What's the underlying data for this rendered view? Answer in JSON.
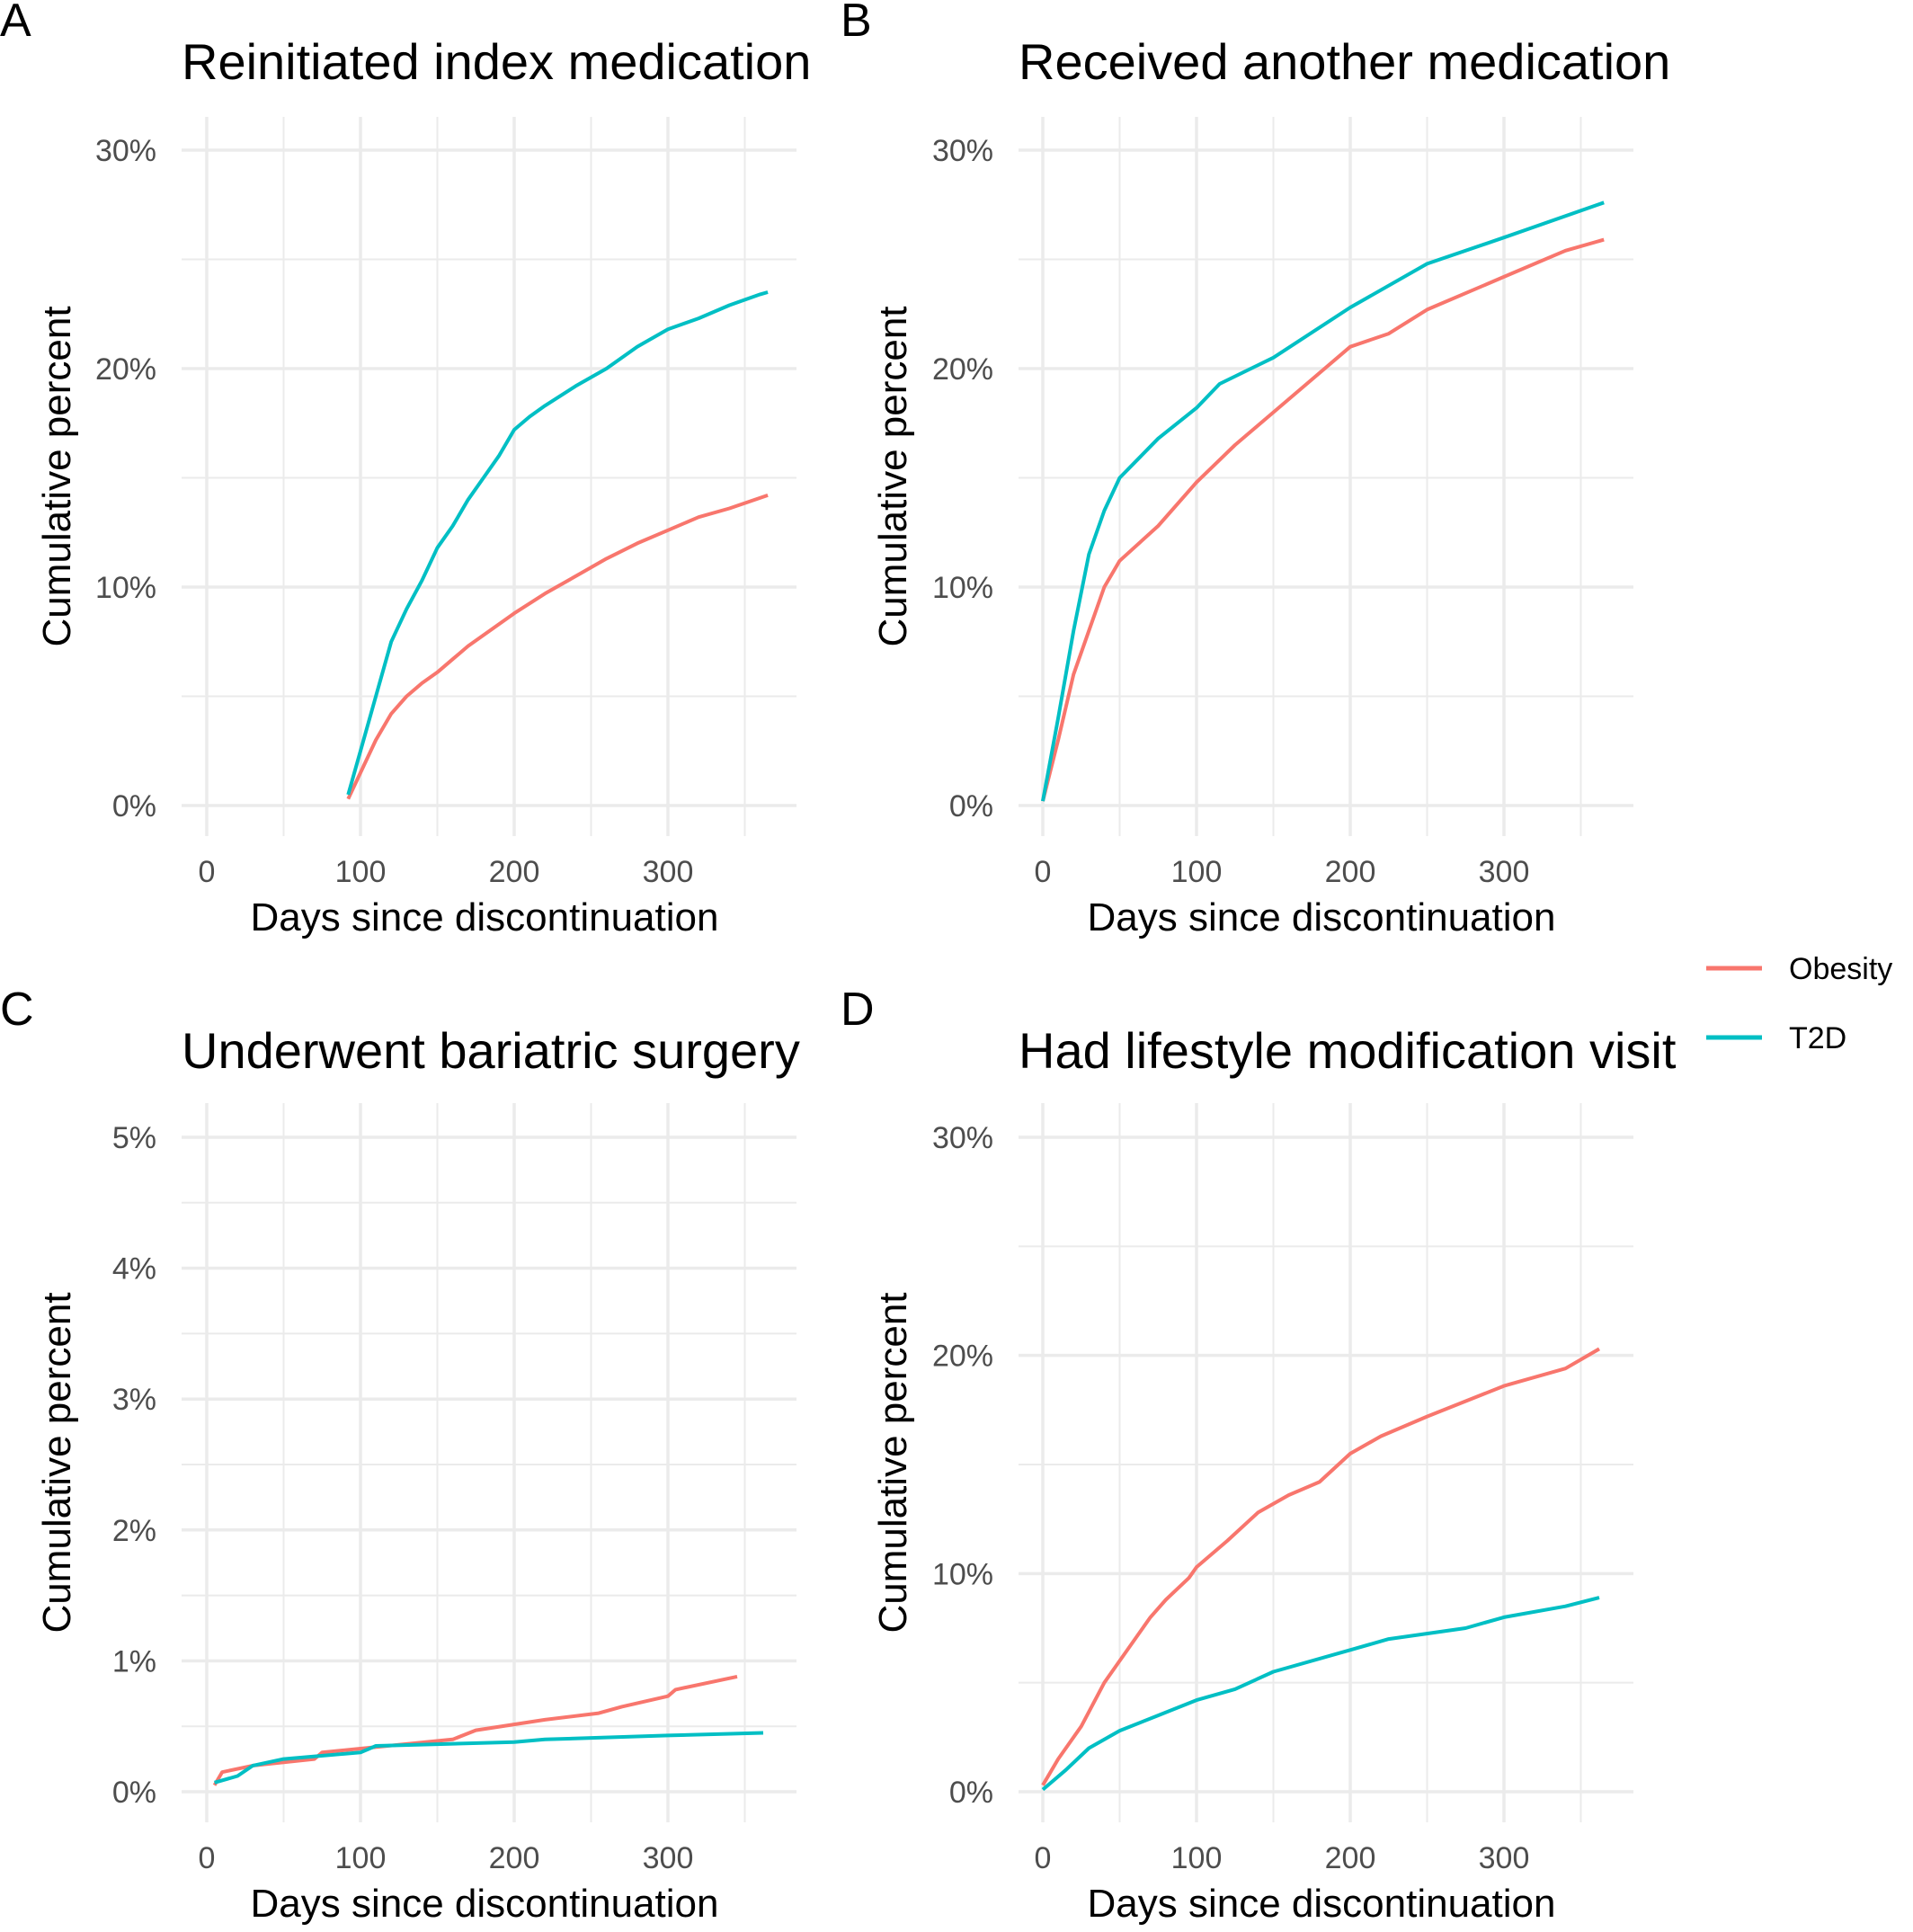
{
  "colors": {
    "Obesity": "#F8766D",
    "T2D": "#00BFC4",
    "grid": "#EBEBEB"
  },
  "legend": {
    "placement": "right",
    "entries": [
      "Obesity",
      "T2D"
    ]
  },
  "chart_data": [
    {
      "panel": "A",
      "type": "line",
      "title": "Reinitiated index medication",
      "xlabel": "Days since discontinuation",
      "ylabel": "Cumulative percent",
      "xlim": [
        0,
        365
      ],
      "ylim": [
        0,
        30
      ],
      "xticks": [
        0,
        100,
        200,
        300
      ],
      "yticks": [
        0,
        10,
        20,
        30
      ],
      "ytick_labels": [
        "0%",
        "10%",
        "20%",
        "30%"
      ],
      "grid": true,
      "series": [
        {
          "name": "Obesity",
          "x": [
            92,
            100,
            110,
            120,
            130,
            140,
            150,
            160,
            170,
            180,
            200,
            220,
            240,
            260,
            280,
            300,
            320,
            340,
            365
          ],
          "y": [
            0.3,
            1.5,
            3,
            4.2,
            5,
            5.6,
            6.1,
            6.7,
            7.3,
            7.8,
            8.8,
            9.7,
            10.5,
            11.3,
            12,
            12.6,
            13.2,
            13.6,
            14.2
          ]
        },
        {
          "name": "T2D",
          "x": [
            92,
            100,
            110,
            120,
            130,
            140,
            150,
            160,
            170,
            180,
            190,
            200,
            210,
            220,
            240,
            260,
            280,
            300,
            320,
            340,
            360,
            365
          ],
          "y": [
            0.5,
            2.5,
            5,
            7.5,
            9,
            10.3,
            11.8,
            12.8,
            14,
            15,
            16,
            17.2,
            17.8,
            18.3,
            19.2,
            20,
            21,
            21.8,
            22.3,
            22.9,
            23.4,
            23.5
          ]
        }
      ]
    },
    {
      "panel": "B",
      "type": "line",
      "title": "Received another medication",
      "xlabel": "Days since discontinuation",
      "ylabel": "Cumulative percent",
      "xlim": [
        0,
        365
      ],
      "ylim": [
        0,
        30
      ],
      "xticks": [
        0,
        100,
        200,
        300
      ],
      "yticks": [
        0,
        10,
        20,
        30
      ],
      "ytick_labels": [
        "0%",
        "10%",
        "20%",
        "30%"
      ],
      "grid": true,
      "series": [
        {
          "name": "Obesity",
          "x": [
            0,
            10,
            20,
            30,
            40,
            50,
            75,
            100,
            125,
            150,
            175,
            200,
            225,
            250,
            300,
            340,
            365
          ],
          "y": [
            0.2,
            3,
            6,
            8,
            10,
            11.2,
            12.8,
            14.8,
            16.5,
            18,
            19.5,
            21,
            21.6,
            22.7,
            24.2,
            25.4,
            25.9
          ]
        },
        {
          "name": "T2D",
          "x": [
            0,
            10,
            20,
            30,
            40,
            50,
            75,
            100,
            115,
            150,
            200,
            250,
            300,
            365
          ],
          "y": [
            0.2,
            4,
            8,
            11.5,
            13.5,
            15,
            16.8,
            18.2,
            19.3,
            20.5,
            22.8,
            24.8,
            26,
            27.6
          ]
        }
      ]
    },
    {
      "panel": "C",
      "type": "line",
      "title": "Underwent bariatric surgery",
      "xlabel": "Days since discontinuation",
      "ylabel": "Cumulative percent",
      "xlim": [
        0,
        365
      ],
      "ylim": [
        0,
        5
      ],
      "xticks": [
        0,
        100,
        200,
        300
      ],
      "yticks": [
        0,
        1,
        2,
        3,
        4,
        5
      ],
      "ytick_labels": [
        "0%",
        "1%",
        "2%",
        "3%",
        "4%",
        "5%"
      ],
      "grid": true,
      "series": [
        {
          "name": "Obesity",
          "x": [
            5,
            10,
            30,
            70,
            75,
            100,
            160,
            175,
            220,
            255,
            270,
            300,
            305,
            345
          ],
          "y": [
            0.05,
            0.15,
            0.2,
            0.25,
            0.3,
            0.33,
            0.4,
            0.47,
            0.55,
            0.6,
            0.65,
            0.73,
            0.78,
            0.88
          ]
        },
        {
          "name": "T2D",
          "x": [
            5,
            20,
            30,
            50,
            100,
            110,
            200,
            220,
            300,
            362
          ],
          "y": [
            0.07,
            0.12,
            0.2,
            0.25,
            0.3,
            0.35,
            0.38,
            0.4,
            0.43,
            0.45
          ]
        }
      ]
    },
    {
      "panel": "D",
      "type": "line",
      "title": "Had lifestyle modification visit",
      "xlabel": "Days since discontinuation",
      "ylabel": "Cumulative percent",
      "xlim": [
        0,
        365
      ],
      "ylim": [
        0,
        30
      ],
      "xticks": [
        0,
        100,
        200,
        300
      ],
      "yticks": [
        0,
        10,
        20,
        30
      ],
      "ytick_labels": [
        "0%",
        "10%",
        "20%",
        "30%"
      ],
      "grid": true,
      "series": [
        {
          "name": "Obesity",
          "x": [
            0,
            10,
            25,
            40,
            50,
            60,
            70,
            80,
            95,
            100,
            120,
            140,
            160,
            180,
            200,
            220,
            250,
            300,
            340,
            362
          ],
          "y": [
            0.3,
            1.5,
            3,
            5,
            6,
            7,
            8,
            8.8,
            9.8,
            10.3,
            11.5,
            12.8,
            13.6,
            14.2,
            15.5,
            16.3,
            17.2,
            18.6,
            19.4,
            20.3
          ]
        },
        {
          "name": "T2D",
          "x": [
            0,
            15,
            30,
            50,
            75,
            100,
            125,
            150,
            200,
            225,
            275,
            300,
            340,
            362
          ],
          "y": [
            0.1,
            1,
            2,
            2.8,
            3.5,
            4.2,
            4.7,
            5.5,
            6.5,
            7,
            7.5,
            8,
            8.5,
            8.9
          ]
        }
      ]
    }
  ]
}
